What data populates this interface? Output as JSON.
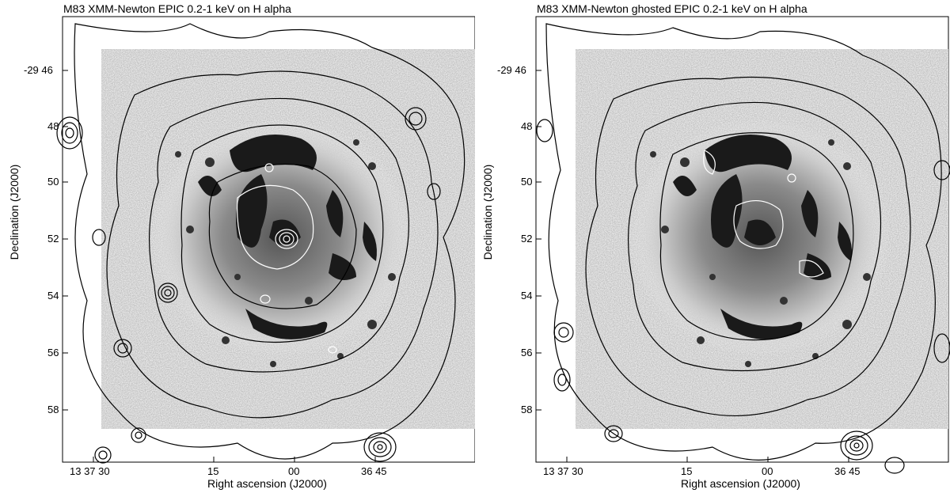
{
  "panels": [
    {
      "title": "M83 XMM-Newton EPIC 0.2-1 keV on H alpha",
      "ylabel": "Declination (J2000)",
      "xlabel": "Right ascension (J2000)",
      "yticks": [
        "-29 46",
        "48",
        "50",
        "52",
        "54",
        "56",
        "58"
      ],
      "xticks": [
        "13 37 30",
        "15",
        "00",
        "36 45"
      ]
    },
    {
      "title": "M83 XMM-Newton ghosted EPIC 0.2-1 keV on H alpha",
      "ylabel": "Declination (J2000)",
      "xlabel": "Right ascension (J2000)",
      "yticks": [
        "-29 46",
        "48",
        "50",
        "52",
        "54",
        "56",
        "58"
      ],
      "xticks": [
        "13 37 30",
        "15",
        "00",
        "36 45"
      ]
    }
  ]
}
